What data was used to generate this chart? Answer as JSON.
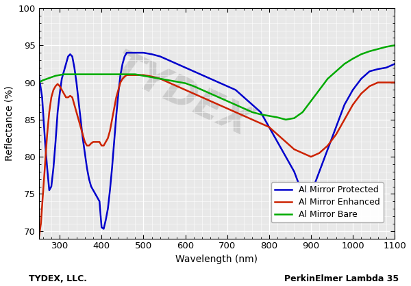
{
  "xlabel": "Wavelength (nm)",
  "ylabel": "Reflectance (%)",
  "xlim": [
    250,
    1100
  ],
  "ylim": [
    69,
    100
  ],
  "yticks": [
    70,
    75,
    80,
    85,
    90,
    95,
    100
  ],
  "xticks": [
    300,
    400,
    500,
    600,
    700,
    800,
    900,
    1000,
    1100
  ],
  "footer_left": "TYDEX, LLC.",
  "footer_right": "PerkinElmer Lambda 35",
  "watermark_text": "TYDEX",
  "blue_label": "Al Mirror Protected",
  "red_label": "Al Mirror Enhanced",
  "green_label": "Al Mirror Bare",
  "blue_color": "#0000CC",
  "red_color": "#CC2200",
  "green_color": "#00AA00",
  "blue_data": [
    [
      250,
      91.0
    ],
    [
      258,
      88.0
    ],
    [
      265,
      82.0
    ],
    [
      270,
      78.5
    ],
    [
      275,
      75.5
    ],
    [
      280,
      76.0
    ],
    [
      285,
      78.5
    ],
    [
      290,
      82.0
    ],
    [
      295,
      86.0
    ],
    [
      300,
      88.5
    ],
    [
      305,
      90.5
    ],
    [
      310,
      91.5
    ],
    [
      315,
      92.5
    ],
    [
      320,
      93.5
    ],
    [
      325,
      93.8
    ],
    [
      330,
      93.5
    ],
    [
      335,
      92.0
    ],
    [
      340,
      90.0
    ],
    [
      345,
      87.5
    ],
    [
      350,
      85.0
    ],
    [
      355,
      82.5
    ],
    [
      360,
      80.5
    ],
    [
      365,
      78.5
    ],
    [
      370,
      77.0
    ],
    [
      375,
      76.0
    ],
    [
      380,
      75.5
    ],
    [
      385,
      75.0
    ],
    [
      390,
      74.5
    ],
    [
      395,
      74.0
    ],
    [
      400,
      70.5
    ],
    [
      405,
      70.3
    ],
    [
      410,
      71.5
    ],
    [
      415,
      73.0
    ],
    [
      420,
      75.5
    ],
    [
      425,
      78.5
    ],
    [
      430,
      82.0
    ],
    [
      435,
      85.5
    ],
    [
      440,
      88.5
    ],
    [
      445,
      91.0
    ],
    [
      450,
      92.5
    ],
    [
      455,
      93.5
    ],
    [
      460,
      94.0
    ],
    [
      465,
      94.0
    ],
    [
      470,
      94.0
    ],
    [
      480,
      94.0
    ],
    [
      490,
      94.0
    ],
    [
      500,
      94.0
    ],
    [
      520,
      93.8
    ],
    [
      540,
      93.5
    ],
    [
      560,
      93.0
    ],
    [
      580,
      92.5
    ],
    [
      600,
      92.0
    ],
    [
      620,
      91.5
    ],
    [
      640,
      91.0
    ],
    [
      660,
      90.5
    ],
    [
      680,
      90.0
    ],
    [
      700,
      89.5
    ],
    [
      720,
      89.0
    ],
    [
      740,
      88.0
    ],
    [
      760,
      87.0
    ],
    [
      780,
      86.0
    ],
    [
      800,
      84.0
    ],
    [
      820,
      82.0
    ],
    [
      840,
      80.0
    ],
    [
      860,
      78.0
    ],
    [
      870,
      76.5
    ],
    [
      880,
      75.5
    ],
    [
      890,
      75.2
    ],
    [
      900,
      75.5
    ],
    [
      910,
      76.5
    ],
    [
      920,
      78.0
    ],
    [
      940,
      81.0
    ],
    [
      960,
      84.0
    ],
    [
      980,
      87.0
    ],
    [
      1000,
      89.0
    ],
    [
      1020,
      90.5
    ],
    [
      1040,
      91.5
    ],
    [
      1060,
      91.8
    ],
    [
      1080,
      92.0
    ],
    [
      1100,
      92.5
    ]
  ],
  "red_data": [
    [
      250,
      69.0
    ],
    [
      255,
      71.0
    ],
    [
      260,
      75.0
    ],
    [
      265,
      79.0
    ],
    [
      270,
      83.0
    ],
    [
      275,
      86.0
    ],
    [
      280,
      88.0
    ],
    [
      285,
      89.0
    ],
    [
      290,
      89.5
    ],
    [
      295,
      89.8
    ],
    [
      300,
      89.5
    ],
    [
      305,
      89.0
    ],
    [
      310,
      88.5
    ],
    [
      315,
      88.0
    ],
    [
      320,
      88.0
    ],
    [
      325,
      88.2
    ],
    [
      330,
      88.0
    ],
    [
      335,
      87.0
    ],
    [
      340,
      86.0
    ],
    [
      345,
      85.0
    ],
    [
      350,
      84.0
    ],
    [
      355,
      83.0
    ],
    [
      360,
      82.0
    ],
    [
      365,
      81.5
    ],
    [
      370,
      81.5
    ],
    [
      375,
      81.8
    ],
    [
      380,
      82.0
    ],
    [
      385,
      82.0
    ],
    [
      390,
      82.0
    ],
    [
      395,
      82.0
    ],
    [
      400,
      81.5
    ],
    [
      405,
      81.5
    ],
    [
      410,
      82.0
    ],
    [
      415,
      82.5
    ],
    [
      420,
      83.5
    ],
    [
      425,
      85.0
    ],
    [
      430,
      86.5
    ],
    [
      435,
      88.0
    ],
    [
      440,
      89.0
    ],
    [
      445,
      90.0
    ],
    [
      450,
      90.5
    ],
    [
      455,
      90.8
    ],
    [
      460,
      91.0
    ],
    [
      470,
      91.0
    ],
    [
      480,
      91.0
    ],
    [
      490,
      91.0
    ],
    [
      500,
      91.0
    ],
    [
      520,
      90.8
    ],
    [
      540,
      90.5
    ],
    [
      560,
      90.0
    ],
    [
      580,
      89.5
    ],
    [
      600,
      89.0
    ],
    [
      620,
      88.5
    ],
    [
      640,
      88.0
    ],
    [
      660,
      87.5
    ],
    [
      680,
      87.0
    ],
    [
      700,
      86.5
    ],
    [
      720,
      86.0
    ],
    [
      740,
      85.5
    ],
    [
      760,
      85.0
    ],
    [
      780,
      84.5
    ],
    [
      800,
      84.0
    ],
    [
      820,
      83.0
    ],
    [
      840,
      82.0
    ],
    [
      860,
      81.0
    ],
    [
      880,
      80.5
    ],
    [
      900,
      80.0
    ],
    [
      920,
      80.5
    ],
    [
      940,
      81.5
    ],
    [
      960,
      83.0
    ],
    [
      980,
      85.0
    ],
    [
      1000,
      87.0
    ],
    [
      1020,
      88.5
    ],
    [
      1040,
      89.5
    ],
    [
      1060,
      90.0
    ],
    [
      1080,
      90.0
    ],
    [
      1100,
      90.0
    ]
  ],
  "green_data": [
    [
      250,
      90.0
    ],
    [
      260,
      90.3
    ],
    [
      270,
      90.5
    ],
    [
      280,
      90.7
    ],
    [
      290,
      90.9
    ],
    [
      300,
      91.0
    ],
    [
      310,
      91.1
    ],
    [
      320,
      91.1
    ],
    [
      330,
      91.1
    ],
    [
      340,
      91.1
    ],
    [
      350,
      91.1
    ],
    [
      360,
      91.1
    ],
    [
      370,
      91.1
    ],
    [
      380,
      91.1
    ],
    [
      390,
      91.1
    ],
    [
      400,
      91.1
    ],
    [
      410,
      91.1
    ],
    [
      420,
      91.1
    ],
    [
      430,
      91.1
    ],
    [
      440,
      91.1
    ],
    [
      450,
      91.1
    ],
    [
      460,
      91.1
    ],
    [
      470,
      91.1
    ],
    [
      480,
      91.1
    ],
    [
      490,
      91.0
    ],
    [
      500,
      90.9
    ],
    [
      520,
      90.7
    ],
    [
      540,
      90.5
    ],
    [
      560,
      90.3
    ],
    [
      580,
      90.1
    ],
    [
      600,
      89.9
    ],
    [
      620,
      89.5
    ],
    [
      640,
      89.0
    ],
    [
      660,
      88.5
    ],
    [
      680,
      88.0
    ],
    [
      700,
      87.5
    ],
    [
      720,
      87.0
    ],
    [
      740,
      86.5
    ],
    [
      760,
      86.0
    ],
    [
      780,
      85.7
    ],
    [
      800,
      85.5
    ],
    [
      820,
      85.3
    ],
    [
      840,
      85.0
    ],
    [
      860,
      85.2
    ],
    [
      880,
      86.0
    ],
    [
      900,
      87.5
    ],
    [
      920,
      89.0
    ],
    [
      940,
      90.5
    ],
    [
      960,
      91.5
    ],
    [
      980,
      92.5
    ],
    [
      1000,
      93.2
    ],
    [
      1020,
      93.8
    ],
    [
      1040,
      94.2
    ],
    [
      1060,
      94.5
    ],
    [
      1080,
      94.8
    ],
    [
      1100,
      95.0
    ]
  ]
}
